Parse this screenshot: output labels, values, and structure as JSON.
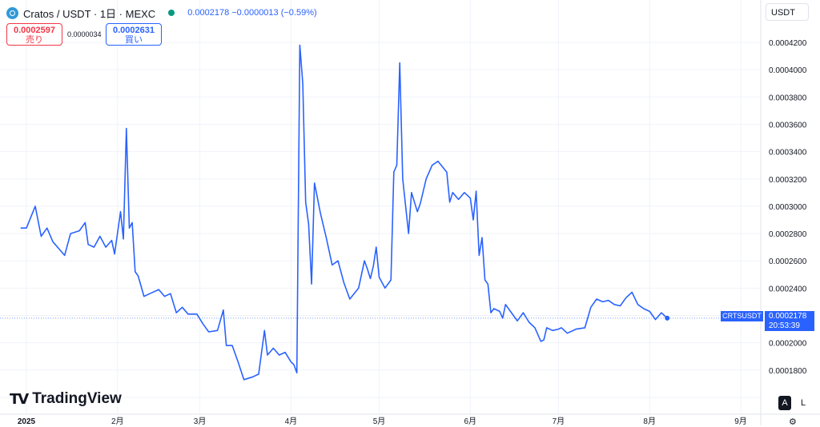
{
  "header": {
    "title": "Cratos / USDT · 1日 · MEXC",
    "ohlc": "0.0002178  −0.0000013 (−0.59%)"
  },
  "trade": {
    "sell_price": "0.0002597",
    "sell_label": "売り",
    "spread": "0.0000034",
    "buy_price": "0.0002631",
    "buy_label": "買い"
  },
  "currency": "USDT",
  "brand": "TradingView",
  "last_price_tag": {
    "symbol": "CRTSUSDT",
    "price": "0.0002178",
    "countdown": "20:53:39"
  },
  "buttons": {
    "auto": "A",
    "log": "L"
  },
  "colors": {
    "line": "#2962ff",
    "grid": "#f0f3fa",
    "price_tag": "#2962ff"
  },
  "chart_data": {
    "type": "line",
    "title": "Cratos / USDT · 1日 · MEXC",
    "xlabel": "",
    "ylabel": "",
    "ylim": [
      0.00016,
      0.00043
    ],
    "y_ticks": [
      "0.0004200",
      "0.0004000",
      "0.0003800",
      "0.0003600",
      "0.0003400",
      "0.0003200",
      "0.0003000",
      "0.0002800",
      "0.0002600",
      "0.0002400",
      "0.0002000",
      "0.0001800"
    ],
    "x_ticks": [
      {
        "label": "2025",
        "date": "2025-01-01"
      },
      {
        "label": "2月",
        "date": "2025-02-01"
      },
      {
        "label": "3月",
        "date": "2025-03-01"
      },
      {
        "label": "4月",
        "date": "2025-04-01"
      },
      {
        "label": "5月",
        "date": "2025-05-01"
      },
      {
        "label": "6月",
        "date": "2025-06-01"
      },
      {
        "label": "7月",
        "date": "2025-07-01"
      },
      {
        "label": "8月",
        "date": "2025-08-01"
      },
      {
        "label": "9月",
        "date": "2025-09-01"
      }
    ],
    "grid": true,
    "series": [
      {
        "name": "CRTSUSDT",
        "points": [
          [
            "2024-12-30",
            0.000284
          ],
          [
            "2025-01-01",
            0.000284
          ],
          [
            "2025-01-04",
            0.0003
          ],
          [
            "2025-01-06",
            0.000278
          ],
          [
            "2025-01-08",
            0.000284
          ],
          [
            "2025-01-10",
            0.000274
          ],
          [
            "2025-01-14",
            0.000264
          ],
          [
            "2025-01-16",
            0.00028
          ],
          [
            "2025-01-19",
            0.000282
          ],
          [
            "2025-01-21",
            0.000288
          ],
          [
            "2025-01-22",
            0.000272
          ],
          [
            "2025-01-24",
            0.00027
          ],
          [
            "2025-01-26",
            0.000278
          ],
          [
            "2025-01-28",
            0.00027
          ],
          [
            "2025-01-30",
            0.000275
          ],
          [
            "2025-01-31",
            0.000265
          ],
          [
            "2025-02-02",
            0.000296
          ],
          [
            "2025-02-03",
            0.000276
          ],
          [
            "2025-02-04",
            0.000357
          ],
          [
            "2025-02-05",
            0.000284
          ],
          [
            "2025-02-06",
            0.000288
          ],
          [
            "2025-02-07",
            0.000252
          ],
          [
            "2025-02-08",
            0.000249
          ],
          [
            "2025-02-10",
            0.000234
          ],
          [
            "2025-02-12",
            0.000236
          ],
          [
            "2025-02-15",
            0.000239
          ],
          [
            "2025-02-17",
            0.000234
          ],
          [
            "2025-02-19",
            0.000236
          ],
          [
            "2025-02-21",
            0.000222
          ],
          [
            "2025-02-23",
            0.000226
          ],
          [
            "2025-02-25",
            0.000221
          ],
          [
            "2025-02-28",
            0.000221
          ],
          [
            "2025-03-02",
            0.000214
          ],
          [
            "2025-03-04",
            0.000208
          ],
          [
            "2025-03-07",
            0.000209
          ],
          [
            "2025-03-09",
            0.000224
          ],
          [
            "2025-03-10",
            0.000198
          ],
          [
            "2025-03-12",
            0.000198
          ],
          [
            "2025-03-14",
            0.000186
          ],
          [
            "2025-03-16",
            0.000173
          ],
          [
            "2025-03-19",
            0.000175
          ],
          [
            "2025-03-21",
            0.000177
          ],
          [
            "2025-03-23",
            0.000209
          ],
          [
            "2025-03-24",
            0.000191
          ],
          [
            "2025-03-26",
            0.000196
          ],
          [
            "2025-03-28",
            0.000191
          ],
          [
            "2025-03-30",
            0.000193
          ],
          [
            "2025-04-01",
            0.000186
          ],
          [
            "2025-04-02",
            0.000184
          ],
          [
            "2025-04-03",
            0.000178
          ],
          [
            "2025-04-04",
            0.000418
          ],
          [
            "2025-04-05",
            0.00039
          ],
          [
            "2025-04-06",
            0.000303
          ],
          [
            "2025-04-07",
            0.000287
          ],
          [
            "2025-04-08",
            0.000243
          ],
          [
            "2025-04-09",
            0.000317
          ],
          [
            "2025-04-11",
            0.000295
          ],
          [
            "2025-04-13",
            0.000277
          ],
          [
            "2025-04-15",
            0.000257
          ],
          [
            "2025-04-17",
            0.00026
          ],
          [
            "2025-04-19",
            0.000244
          ],
          [
            "2025-04-21",
            0.000232
          ],
          [
            "2025-04-24",
            0.00024
          ],
          [
            "2025-04-26",
            0.00026
          ],
          [
            "2025-04-27",
            0.000254
          ],
          [
            "2025-04-28",
            0.000247
          ],
          [
            "2025-04-29",
            0.000256
          ],
          [
            "2025-04-30",
            0.00027
          ],
          [
            "2025-05-01",
            0.000248
          ],
          [
            "2025-05-03",
            0.00024
          ],
          [
            "2025-05-05",
            0.000246
          ],
          [
            "2025-05-06",
            0.000325
          ],
          [
            "2025-05-07",
            0.00033
          ],
          [
            "2025-05-08",
            0.000405
          ],
          [
            "2025-05-09",
            0.00032
          ],
          [
            "2025-05-11",
            0.00028
          ],
          [
            "2025-05-12",
            0.00031
          ],
          [
            "2025-05-14",
            0.000296
          ],
          [
            "2025-05-15",
            0.000302
          ],
          [
            "2025-05-17",
            0.00032
          ],
          [
            "2025-05-19",
            0.00033
          ],
          [
            "2025-05-21",
            0.000333
          ],
          [
            "2025-05-24",
            0.000325
          ],
          [
            "2025-05-25",
            0.000303
          ],
          [
            "2025-05-26",
            0.00031
          ],
          [
            "2025-05-28",
            0.000305
          ],
          [
            "2025-05-30",
            0.00031
          ],
          [
            "2025-06-01",
            0.000306
          ],
          [
            "2025-06-02",
            0.00029
          ],
          [
            "2025-06-03",
            0.000311
          ],
          [
            "2025-06-04",
            0.000264
          ],
          [
            "2025-06-05",
            0.000277
          ],
          [
            "2025-06-06",
            0.000246
          ],
          [
            "2025-06-07",
            0.000243
          ],
          [
            "2025-06-08",
            0.000222
          ],
          [
            "2025-06-09",
            0.000225
          ],
          [
            "2025-06-11",
            0.000223
          ],
          [
            "2025-06-12",
            0.000218
          ],
          [
            "2025-06-13",
            0.000228
          ],
          [
            "2025-06-15",
            0.000222
          ],
          [
            "2025-06-17",
            0.000216
          ],
          [
            "2025-06-19",
            0.000222
          ],
          [
            "2025-06-21",
            0.000215
          ],
          [
            "2025-06-23",
            0.000211
          ],
          [
            "2025-06-24",
            0.000206
          ],
          [
            "2025-06-25",
            0.000201
          ],
          [
            "2025-06-26",
            0.000202
          ],
          [
            "2025-06-27",
            0.000211
          ],
          [
            "2025-06-29",
            0.000209
          ],
          [
            "2025-07-01",
            0.00021
          ],
          [
            "2025-07-02",
            0.000211
          ],
          [
            "2025-07-04",
            0.000207
          ],
          [
            "2025-07-07",
            0.00021
          ],
          [
            "2025-07-10",
            0.000211
          ],
          [
            "2025-07-12",
            0.000226
          ],
          [
            "2025-07-14",
            0.000232
          ],
          [
            "2025-07-16",
            0.00023
          ],
          [
            "2025-07-18",
            0.000231
          ],
          [
            "2025-07-20",
            0.000228
          ],
          [
            "2025-07-22",
            0.000227
          ],
          [
            "2025-07-24",
            0.000233
          ],
          [
            "2025-07-26",
            0.000237
          ],
          [
            "2025-07-28",
            0.000228
          ],
          [
            "2025-07-30",
            0.000225
          ],
          [
            "2025-08-01",
            0.000223
          ],
          [
            "2025-08-03",
            0.000217
          ],
          [
            "2025-08-05",
            0.000222
          ],
          [
            "2025-08-07",
            0.000218
          ]
        ]
      }
    ]
  }
}
